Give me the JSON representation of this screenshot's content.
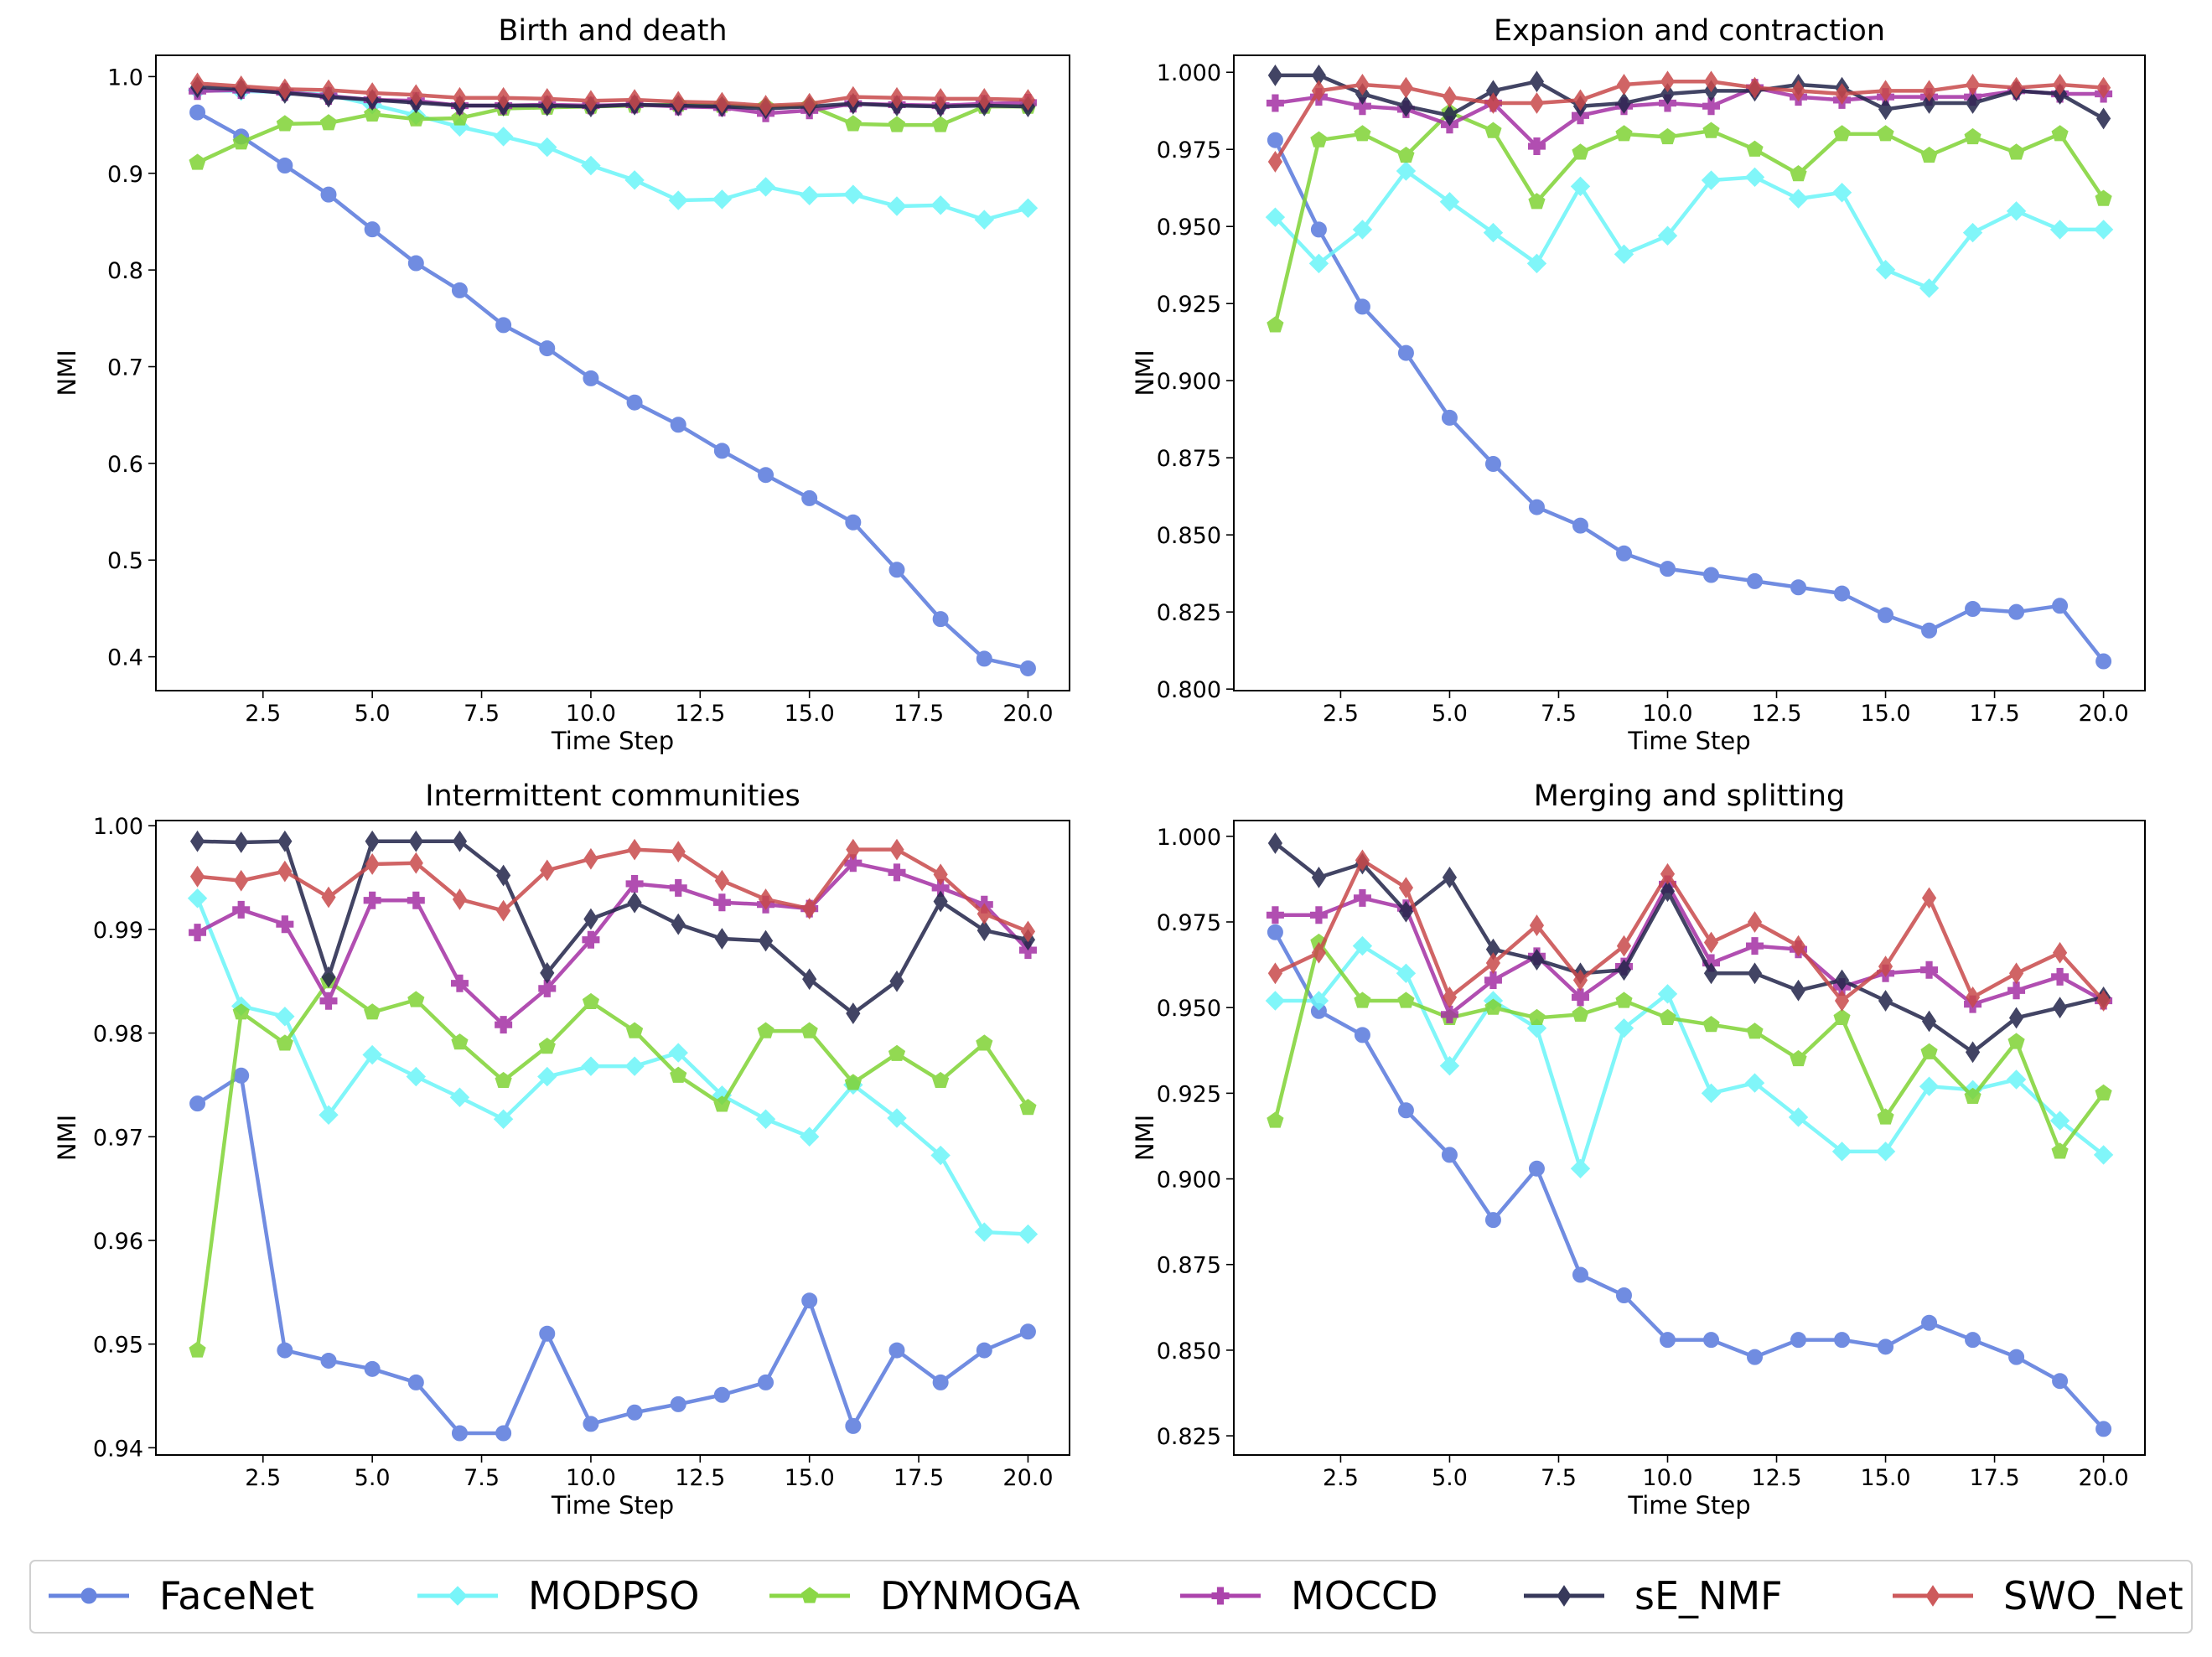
{
  "chart_data": [
    {
      "type": "line",
      "title": "Birth and death",
      "xlabel": "Time Step",
      "ylabel": "NMI",
      "xlim": [
        0.05,
        20.95
      ],
      "ylim": [
        0.365,
        1.022
      ],
      "xticks": [
        2.5,
        5.0,
        7.5,
        10.0,
        12.5,
        15.0,
        17.5,
        20.0
      ],
      "xtick_labels": [
        "2.5",
        "5.0",
        "7.5",
        "10.0",
        "12.5",
        "15.0",
        "17.5",
        "20.0"
      ],
      "yticks": [
        0.4,
        0.5,
        0.6,
        0.7,
        0.8,
        0.9,
        1.0
      ],
      "ytick_labels": [
        "0.4",
        "0.5",
        "0.6",
        "0.7",
        "0.8",
        "0.9",
        "1.0"
      ],
      "x": [
        1,
        2,
        3,
        4,
        5,
        6,
        7,
        8,
        9,
        10,
        11,
        12,
        13,
        14,
        15,
        16,
        17,
        18,
        19,
        20
      ],
      "series": [
        {
          "name": "FaceNet",
          "values": [
            0.963,
            0.938,
            0.908,
            0.878,
            0.842,
            0.807,
            0.779,
            0.743,
            0.719,
            0.688,
            0.663,
            0.64,
            0.613,
            0.588,
            0.564,
            0.539,
            0.49,
            0.439,
            0.398,
            0.388
          ]
        },
        {
          "name": "MODPSO",
          "values": [
            0.986,
            0.985,
            0.984,
            0.981,
            0.971,
            0.96,
            0.948,
            0.938,
            0.927,
            0.908,
            0.893,
            0.872,
            0.873,
            0.886,
            0.877,
            0.878,
            0.866,
            0.867,
            0.852,
            0.864
          ]
        },
        {
          "name": "DYNMOGA",
          "values": [
            0.911,
            0.932,
            0.951,
            0.952,
            0.961,
            0.956,
            0.957,
            0.967,
            0.968,
            0.969,
            0.97,
            0.971,
            0.97,
            0.969,
            0.97,
            0.951,
            0.95,
            0.95,
            0.969,
            0.969
          ]
        },
        {
          "name": "MOCCD",
          "values": [
            0.985,
            0.986,
            0.984,
            0.98,
            0.976,
            0.975,
            0.97,
            0.97,
            0.971,
            0.97,
            0.971,
            0.969,
            0.968,
            0.962,
            0.965,
            0.972,
            0.971,
            0.97,
            0.972,
            0.973
          ]
        },
        {
          "name": "sE_NMF",
          "values": [
            0.989,
            0.987,
            0.983,
            0.979,
            0.976,
            0.973,
            0.97,
            0.97,
            0.97,
            0.969,
            0.971,
            0.97,
            0.969,
            0.967,
            0.969,
            0.972,
            0.97,
            0.969,
            0.97,
            0.969
          ]
        },
        {
          "name": "SWO_Net",
          "values": [
            0.993,
            0.99,
            0.987,
            0.986,
            0.983,
            0.981,
            0.978,
            0.978,
            0.977,
            0.975,
            0.976,
            0.974,
            0.973,
            0.97,
            0.972,
            0.979,
            0.978,
            0.977,
            0.977,
            0.976
          ]
        }
      ]
    },
    {
      "type": "line",
      "title": "Expansion and contraction",
      "xlabel": "Time Step",
      "ylabel": "NMI",
      "xlim": [
        0.05,
        20.95
      ],
      "ylim": [
        0.7995,
        1.0055
      ],
      "xticks": [
        2.5,
        5.0,
        7.5,
        10.0,
        12.5,
        15.0,
        17.5,
        20.0
      ],
      "xtick_labels": [
        "2.5",
        "5.0",
        "7.5",
        "10.0",
        "12.5",
        "15.0",
        "17.5",
        "20.0"
      ],
      "yticks": [
        0.8,
        0.825,
        0.85,
        0.875,
        0.9,
        0.925,
        0.95,
        0.975,
        1.0
      ],
      "ytick_labels": [
        "0.800",
        "0.825",
        "0.850",
        "0.875",
        "0.900",
        "0.925",
        "0.950",
        "0.975",
        "1.000"
      ],
      "x": [
        1,
        2,
        3,
        4,
        5,
        6,
        7,
        8,
        9,
        10,
        11,
        12,
        13,
        14,
        15,
        16,
        17,
        18,
        19,
        20
      ],
      "series": [
        {
          "name": "FaceNet",
          "values": [
            0.978,
            0.949,
            0.924,
            0.909,
            0.888,
            0.873,
            0.859,
            0.853,
            0.844,
            0.839,
            0.837,
            0.835,
            0.833,
            0.831,
            0.824,
            0.819,
            0.826,
            0.825,
            0.827,
            0.809
          ]
        },
        {
          "name": "MODPSO",
          "values": [
            0.953,
            0.938,
            0.949,
            0.968,
            0.958,
            0.948,
            0.938,
            0.963,
            0.941,
            0.947,
            0.965,
            0.966,
            0.959,
            0.961,
            0.936,
            0.93,
            0.948,
            0.955,
            0.949,
            0.949
          ]
        },
        {
          "name": "DYNMOGA",
          "values": [
            0.918,
            0.978,
            0.98,
            0.973,
            0.987,
            0.981,
            0.958,
            0.974,
            0.98,
            0.979,
            0.981,
            0.975,
            0.967,
            0.98,
            0.98,
            0.973,
            0.979,
            0.974,
            0.98,
            0.959
          ]
        },
        {
          "name": "MOCCD",
          "values": [
            0.99,
            0.992,
            0.989,
            0.988,
            0.983,
            0.99,
            0.976,
            0.986,
            0.989,
            0.99,
            0.989,
            0.995,
            0.992,
            0.991,
            0.992,
            0.992,
            0.992,
            0.994,
            0.993,
            0.993
          ]
        },
        {
          "name": "sE_NMF",
          "values": [
            0.999,
            0.999,
            0.993,
            0.989,
            0.986,
            0.994,
            0.997,
            0.989,
            0.99,
            0.993,
            0.994,
            0.994,
            0.996,
            0.995,
            0.988,
            0.99,
            0.99,
            0.994,
            0.993,
            0.985
          ]
        },
        {
          "name": "SWO_Net",
          "values": [
            0.971,
            0.994,
            0.996,
            0.995,
            0.992,
            0.99,
            0.99,
            0.991,
            0.996,
            0.997,
            0.997,
            0.995,
            0.994,
            0.993,
            0.994,
            0.994,
            0.996,
            0.995,
            0.996,
            0.995
          ]
        }
      ]
    },
    {
      "type": "line",
      "title": "Intermittent communities",
      "xlabel": "Time Step",
      "ylabel": "NMI",
      "xlim": [
        0.05,
        20.95
      ],
      "ylim": [
        0.9393,
        1.0005
      ],
      "xticks": [
        2.5,
        5.0,
        7.5,
        10.0,
        12.5,
        15.0,
        17.5,
        20.0
      ],
      "xtick_labels": [
        "2.5",
        "5.0",
        "7.5",
        "10.0",
        "12.5",
        "15.0",
        "17.5",
        "20.0"
      ],
      "yticks": [
        0.94,
        0.95,
        0.96,
        0.97,
        0.98,
        0.99,
        1.0
      ],
      "ytick_labels": [
        "0.94",
        "0.95",
        "0.96",
        "0.97",
        "0.98",
        "0.99",
        "1.00"
      ],
      "x": [
        1,
        2,
        3,
        4,
        5,
        6,
        7,
        8,
        9,
        10,
        11,
        12,
        13,
        14,
        15,
        16,
        17,
        18,
        19,
        20
      ],
      "series": [
        {
          "name": "FaceNet",
          "values": [
            0.9732,
            0.9759,
            0.9494,
            0.9484,
            0.9476,
            0.9463,
            0.9414,
            0.9414,
            0.951,
            0.9423,
            0.9434,
            0.9442,
            0.9451,
            0.9463,
            0.9542,
            0.9421,
            0.9494,
            0.9463,
            0.9494,
            0.9512
          ]
        },
        {
          "name": "MODPSO",
          "values": [
            0.993,
            0.9826,
            0.9816,
            0.9721,
            0.9779,
            0.9758,
            0.9738,
            0.9717,
            0.9758,
            0.9768,
            0.9768,
            0.9781,
            0.974,
            0.9717,
            0.97,
            0.975,
            0.9718,
            0.9682,
            0.9608,
            0.9606
          ]
        },
        {
          "name": "DYNMOGA",
          "values": [
            0.9494,
            0.982,
            0.979,
            0.985,
            0.982,
            0.9832,
            0.9791,
            0.9754,
            0.9787,
            0.983,
            0.9802,
            0.9759,
            0.9731,
            0.9802,
            0.9802,
            0.9752,
            0.978,
            0.9754,
            0.979,
            0.9728
          ]
        },
        {
          "name": "MOCCD",
          "values": [
            0.9897,
            0.9919,
            0.9905,
            0.9831,
            0.9928,
            0.9928,
            0.9848,
            0.9808,
            0.9843,
            0.989,
            0.9944,
            0.994,
            0.9926,
            0.9924,
            0.992,
            0.9964,
            0.9955,
            0.994,
            0.9924,
            0.988
          ]
        },
        {
          "name": "sE_NMF",
          "values": [
            0.9985,
            0.9984,
            0.9985,
            0.9854,
            0.9985,
            0.9985,
            0.9985,
            0.9952,
            0.9858,
            0.991,
            0.9926,
            0.9905,
            0.9891,
            0.9889,
            0.9852,
            0.9819,
            0.985,
            0.9927,
            0.9899,
            0.989
          ]
        },
        {
          "name": "SWO_Net",
          "values": [
            0.9951,
            0.9947,
            0.9956,
            0.9931,
            0.9963,
            0.9964,
            0.9929,
            0.9918,
            0.9957,
            0.9968,
            0.9977,
            0.9975,
            0.9947,
            0.9929,
            0.992,
            0.9977,
            0.9977,
            0.9953,
            0.9915,
            0.9898
          ]
        }
      ]
    },
    {
      "type": "line",
      "title": "Merging and splitting",
      "xlabel": "Time Step",
      "ylabel": "NMI",
      "xlim": [
        0.05,
        20.95
      ],
      "ylim": [
        0.8194,
        1.0046
      ],
      "xticks": [
        2.5,
        5.0,
        7.5,
        10.0,
        12.5,
        15.0,
        17.5,
        20.0
      ],
      "xtick_labels": [
        "2.5",
        "5.0",
        "7.5",
        "10.0",
        "12.5",
        "15.0",
        "17.5",
        "20.0"
      ],
      "yticks": [
        0.825,
        0.85,
        0.875,
        0.9,
        0.925,
        0.95,
        0.975,
        1.0
      ],
      "ytick_labels": [
        "0.825",
        "0.850",
        "0.875",
        "0.900",
        "0.925",
        "0.950",
        "0.975",
        "1.000"
      ],
      "x": [
        1,
        2,
        3,
        4,
        5,
        6,
        7,
        8,
        9,
        10,
        11,
        12,
        13,
        14,
        15,
        16,
        17,
        18,
        19,
        20
      ],
      "series": [
        {
          "name": "FaceNet",
          "values": [
            0.972,
            0.949,
            0.942,
            0.92,
            0.907,
            0.888,
            0.903,
            0.872,
            0.866,
            0.853,
            0.853,
            0.848,
            0.853,
            0.853,
            0.851,
            0.858,
            0.853,
            0.848,
            0.841,
            0.827
          ]
        },
        {
          "name": "MODPSO",
          "values": [
            0.952,
            0.952,
            0.968,
            0.96,
            0.933,
            0.952,
            0.944,
            0.903,
            0.944,
            0.954,
            0.925,
            0.928,
            0.918,
            0.908,
            0.908,
            0.927,
            0.926,
            0.929,
            0.917,
            0.907
          ]
        },
        {
          "name": "DYNMOGA",
          "values": [
            0.917,
            0.969,
            0.952,
            0.952,
            0.947,
            0.95,
            0.947,
            0.948,
            0.952,
            0.947,
            0.945,
            0.943,
            0.935,
            0.947,
            0.918,
            0.937,
            0.924,
            0.94,
            0.908,
            0.925
          ]
        },
        {
          "name": "MOCCD",
          "values": [
            0.977,
            0.977,
            0.982,
            0.979,
            0.948,
            0.958,
            0.965,
            0.953,
            0.962,
            0.986,
            0.963,
            0.968,
            0.967,
            0.956,
            0.96,
            0.961,
            0.951,
            0.955,
            0.959,
            0.952
          ]
        },
        {
          "name": "sE_NMF",
          "values": [
            0.998,
            0.988,
            0.992,
            0.978,
            0.988,
            0.967,
            0.964,
            0.96,
            0.961,
            0.984,
            0.96,
            0.96,
            0.955,
            0.958,
            0.952,
            0.946,
            0.937,
            0.947,
            0.95,
            0.953
          ]
        },
        {
          "name": "SWO_Net",
          "values": [
            0.96,
            0.966,
            0.993,
            0.985,
            0.953,
            0.963,
            0.974,
            0.958,
            0.968,
            0.989,
            0.969,
            0.975,
            0.968,
            0.952,
            0.962,
            0.982,
            0.953,
            0.96,
            0.966,
            0.952
          ]
        }
      ]
    }
  ],
  "legend": {
    "location": "bottom",
    "entries": [
      {
        "name": "FaceNet",
        "color": "#5878dc",
        "marker": "circle"
      },
      {
        "name": "MODPSO",
        "color": "#6af5f9",
        "marker": "diamond"
      },
      {
        "name": "DYNMOGA",
        "color": "#7fd334",
        "marker": "pentagon"
      },
      {
        "name": "MOCCD",
        "color": "#a430a4",
        "marker": "plus"
      },
      {
        "name": "sE_NMF",
        "color": "#22244a",
        "marker": "thin-diamond"
      },
      {
        "name": "SWO_Net",
        "color": "#c8494b",
        "marker": "thin-diamond"
      }
    ]
  }
}
